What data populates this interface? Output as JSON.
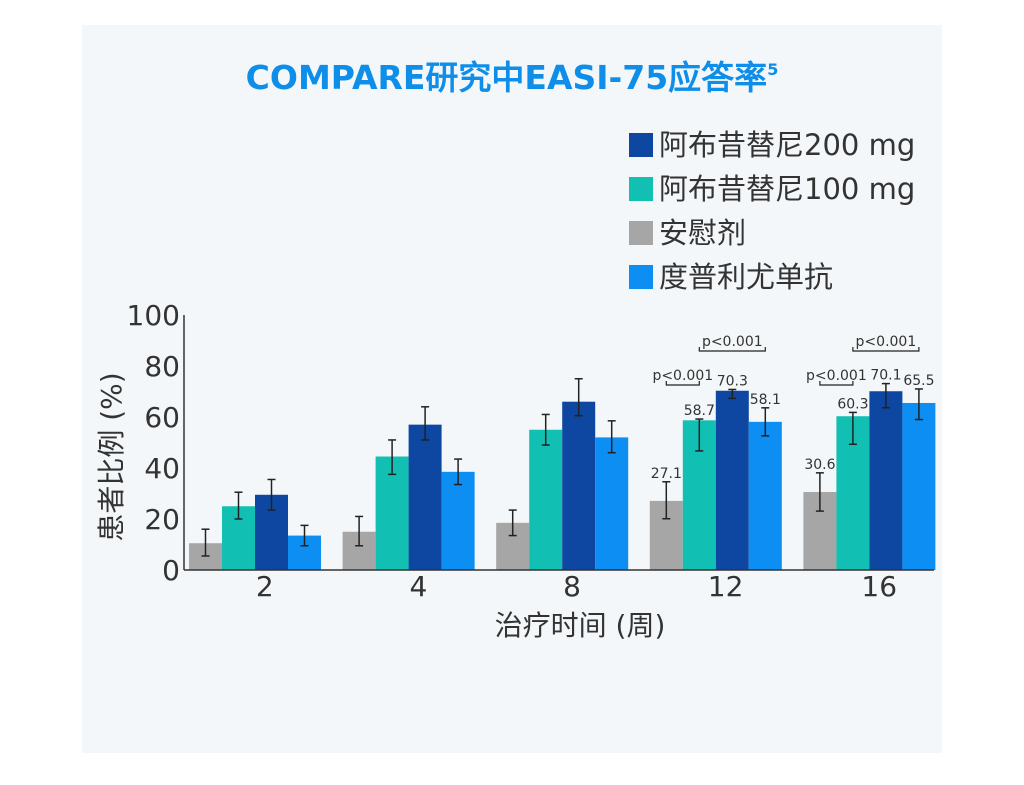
{
  "chart_data": {
    "type": "bar",
    "title": "COMPARE研究中EASI-75应答率",
    "title_superscript": "5",
    "xlabel": "治疗时间 (周)",
    "ylabel": "患者比例 (%)",
    "ylim": [
      0,
      100
    ],
    "yticks": [
      "0",
      "20",
      "40",
      "60",
      "80",
      "100"
    ],
    "categories": [
      "2",
      "4",
      "8",
      "12",
      "16"
    ],
    "legend_position": "top-right",
    "series": [
      {
        "name": "安慰剂",
        "color": "#a6a6a6",
        "values": [
          10.5,
          15,
          18.5,
          27.1,
          30.6
        ],
        "err_low": [
          5,
          5.5,
          5,
          7,
          7.5
        ],
        "err_high": [
          5.5,
          6,
          5,
          7.5,
          7.5
        ]
      },
      {
        "name": "阿布昔替尼100 mg",
        "color": "#11bfb3",
        "values": [
          25,
          44.5,
          55,
          58.7,
          60.3
        ],
        "err_low": [
          5,
          7,
          6,
          12,
          11
        ],
        "err_high": [
          5.5,
          6.5,
          6,
          0.5,
          1.5
        ]
      },
      {
        "name": "阿布昔替尼200 mg",
        "color": "#0d47a1",
        "values": [
          29.5,
          57,
          66,
          70.3,
          70.1
        ],
        "err_low": [
          6,
          6,
          5.5,
          3,
          6.5
        ],
        "err_high": [
          6,
          7,
          9,
          0.5,
          3
        ]
      },
      {
        "name": "度普利尤单抗",
        "color": "#0d8ef2",
        "values": [
          13.5,
          38.5,
          52,
          58.1,
          65.5
        ],
        "err_low": [
          4,
          5,
          6,
          5.5,
          6.5
        ],
        "err_high": [
          4,
          5,
          6.5,
          5.5,
          5.5
        ]
      }
    ],
    "legend_order": [
      "阿布昔替尼200 mg",
      "阿布昔替尼100 mg",
      "安慰剂",
      "度普利尤单抗"
    ],
    "data_labels": {
      "12": {
        "安慰剂": "27.1",
        "阿布昔替尼100 mg": "58.7",
        "阿布昔替尼200 mg": "70.3",
        "度普利尤单抗": "58.1"
      },
      "16": {
        "安慰剂": "30.6",
        "阿布昔替尼100 mg": "60.3",
        "阿布昔替尼200 mg": "70.1",
        "度普利尤单抗": "65.5"
      }
    },
    "annotations": [
      {
        "category": "12",
        "text": "p<0.001",
        "from": "阿布昔替尼100 mg",
        "to": "度普利尤单抗",
        "level": "upper"
      },
      {
        "category": "12",
        "text": "p<0.001",
        "from": "安慰剂",
        "to": "阿布昔替尼100 mg",
        "level": "lower"
      },
      {
        "category": "16",
        "text": "p<0.001",
        "from": "阿布昔替尼100 mg",
        "to": "度普利尤单抗",
        "level": "upper"
      },
      {
        "category": "16",
        "text": "p<0.001",
        "from": "安慰剂",
        "to": "阿布昔替尼100 mg",
        "level": "lower"
      }
    ]
  }
}
